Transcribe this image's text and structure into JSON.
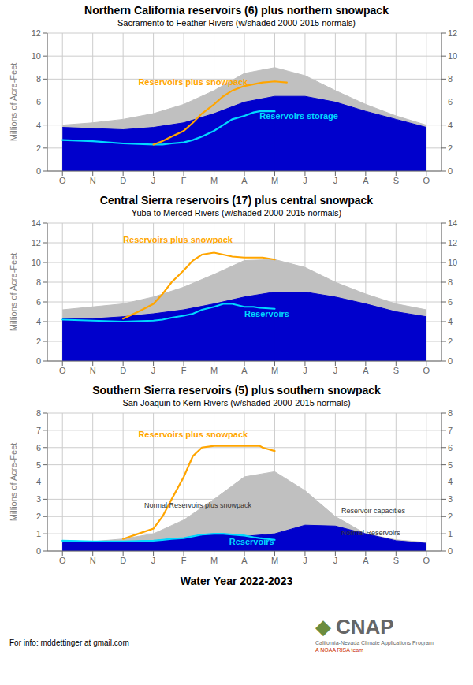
{
  "chart_data": [
    {
      "type": "area",
      "title": "Northern California reservoirs (6) plus northern snowpack",
      "subtitle": "Sacramento to Feather Rivers (w/shaded 2000-2015 normals)",
      "ylabel": "Millions of Acre-Feet",
      "xlim": [
        -0.5,
        12.5
      ],
      "xticks": [
        {
          "value": 0,
          "label": "O"
        },
        {
          "value": 1,
          "label": "N"
        },
        {
          "value": 2,
          "label": "D"
        },
        {
          "value": 3,
          "label": "J"
        },
        {
          "value": 4,
          "label": "F"
        },
        {
          "value": 5,
          "label": "M"
        },
        {
          "value": 6,
          "label": "A"
        },
        {
          "value": 7,
          "label": "M"
        },
        {
          "value": 8,
          "label": "J"
        },
        {
          "value": 9,
          "label": "J"
        },
        {
          "value": 10,
          "label": "A"
        },
        {
          "value": 11,
          "label": "S"
        },
        {
          "value": 12,
          "label": "O"
        }
      ],
      "ylim": [
        0,
        12
      ],
      "yticks": [
        0,
        2,
        4,
        6,
        8,
        10,
        12
      ],
      "y2lim": [
        0,
        12
      ],
      "y2ticks": [
        0,
        2,
        4,
        6,
        8,
        10,
        12
      ],
      "grid": true,
      "series": [
        {
          "type": "area",
          "color": "#c0c0c0",
          "x": [
            0,
            1,
            2,
            3,
            4,
            5,
            6,
            7,
            8,
            9,
            10,
            11,
            12
          ],
          "values": [
            4.0,
            4.2,
            4.5,
            5.0,
            5.8,
            7.0,
            8.5,
            9.0,
            8.3,
            7.0,
            5.8,
            4.8,
            4.0
          ]
        },
        {
          "type": "area",
          "color": "#0000cc",
          "x": [
            0,
            1,
            2,
            3,
            4,
            5,
            6,
            7,
            8,
            9,
            10,
            11,
            12
          ],
          "values": [
            3.8,
            3.7,
            3.6,
            3.8,
            4.2,
            5.0,
            6.0,
            6.5,
            6.5,
            6.0,
            5.2,
            4.5,
            3.8
          ]
        },
        {
          "type": "area",
          "color": "#0000cc",
          "x": [
            0,
            1,
            2,
            3,
            3.3,
            3.6,
            4,
            4.3,
            4.6,
            5,
            5.3,
            5.6,
            6,
            6.3,
            6.5,
            7
          ],
          "values": [
            2.7,
            2.6,
            2.4,
            2.3,
            2.3,
            2.4,
            2.5,
            2.7,
            3.0,
            3.5,
            4.0,
            4.5,
            4.8,
            5.1,
            5.2,
            5.2
          ]
        },
        {
          "type": "line",
          "color": "#00d8ff",
          "x": [
            0,
            1,
            2,
            3,
            3.3,
            3.6,
            4,
            4.3,
            4.6,
            5,
            5.3,
            5.6,
            6,
            6.3,
            6.5,
            7
          ],
          "values": [
            2.7,
            2.6,
            2.4,
            2.3,
            2.3,
            2.4,
            2.5,
            2.7,
            3.0,
            3.5,
            4.0,
            4.5,
            4.8,
            5.1,
            5.2,
            5.2
          ]
        },
        {
          "type": "line",
          "color": "#ffa500",
          "x": [
            3,
            3.3,
            3.6,
            4,
            4.3,
            4.6,
            5,
            5.3,
            5.6,
            6,
            6.2,
            6.4,
            6.6,
            6.8,
            7,
            7.2,
            7.4
          ],
          "values": [
            2.3,
            2.6,
            3.0,
            3.5,
            4.2,
            5.0,
            5.8,
            6.5,
            7.0,
            7.4,
            7.5,
            7.6,
            7.7,
            7.75,
            7.8,
            7.75,
            7.7
          ]
        }
      ],
      "annotations": [
        {
          "text": "Reservoirs plus snowpack",
          "x": 2.5,
          "y": 7.5,
          "color": "#ffa500"
        },
        {
          "text": "Reservoirs storage",
          "x": 6.5,
          "y": 4.5,
          "color": "#00d8ff"
        }
      ]
    },
    {
      "type": "area",
      "title": "Central Sierra reservoirs (17) plus central snowpack",
      "subtitle": "Yuba to Merced Rivers (w/shaded 2000-2015 normals)",
      "ylabel": "Millions of Acre-Feet",
      "xlim": [
        -0.5,
        12.5
      ],
      "xticks": [
        {
          "value": 0,
          "label": "O"
        },
        {
          "value": 1,
          "label": "N"
        },
        {
          "value": 2,
          "label": "D"
        },
        {
          "value": 3,
          "label": "J"
        },
        {
          "value": 4,
          "label": "F"
        },
        {
          "value": 5,
          "label": "M"
        },
        {
          "value": 6,
          "label": "A"
        },
        {
          "value": 7,
          "label": "M"
        },
        {
          "value": 8,
          "label": "J"
        },
        {
          "value": 9,
          "label": "J"
        },
        {
          "value": 10,
          "label": "A"
        },
        {
          "value": 11,
          "label": "S"
        },
        {
          "value": 12,
          "label": "O"
        }
      ],
      "ylim": [
        0,
        14
      ],
      "yticks": [
        0,
        2,
        4,
        6,
        8,
        10,
        12,
        14
      ],
      "y2lim": [
        0,
        14
      ],
      "y2ticks": [
        0,
        2,
        4,
        6,
        8,
        10,
        12,
        14
      ],
      "grid": true,
      "series": [
        {
          "type": "area",
          "color": "#c0c0c0",
          "x": [
            0,
            1,
            2,
            3,
            4,
            5,
            6,
            7,
            8,
            9,
            10,
            11,
            12
          ],
          "values": [
            5.2,
            5.5,
            5.8,
            6.5,
            7.5,
            8.8,
            10.2,
            10.3,
            9.5,
            8.0,
            6.8,
            5.8,
            5.2
          ]
        },
        {
          "type": "area",
          "color": "#0000cc",
          "x": [
            0,
            1,
            2,
            3,
            4,
            5,
            6,
            7,
            8,
            9,
            10,
            11,
            12
          ],
          "values": [
            4.3,
            4.3,
            4.5,
            4.8,
            5.2,
            5.8,
            6.5,
            7.0,
            7.0,
            6.5,
            5.8,
            5.0,
            4.5
          ]
        },
        {
          "type": "area",
          "color": "#0000cc",
          "x": [
            0,
            1,
            2,
            3,
            3.3,
            3.6,
            4,
            4.3,
            4.6,
            5,
            5.3,
            5.6,
            6,
            6.3,
            6.5,
            7
          ],
          "values": [
            4.2,
            4.1,
            4.0,
            4.1,
            4.2,
            4.4,
            4.6,
            4.8,
            5.2,
            5.5,
            5.8,
            5.8,
            5.5,
            5.5,
            5.4,
            5.3
          ]
        },
        {
          "type": "line",
          "color": "#00d8ff",
          "x": [
            0,
            1,
            2,
            3,
            3.3,
            3.6,
            4,
            4.3,
            4.6,
            5,
            5.3,
            5.6,
            6,
            6.3,
            6.5,
            7
          ],
          "values": [
            4.2,
            4.1,
            4.0,
            4.1,
            4.2,
            4.4,
            4.6,
            4.8,
            5.2,
            5.5,
            5.8,
            5.8,
            5.5,
            5.5,
            5.4,
            5.3
          ]
        },
        {
          "type": "line",
          "color": "#ffa500",
          "x": [
            2,
            2.5,
            3,
            3.3,
            3.6,
            4,
            4.3,
            4.6,
            5,
            5.3,
            5.6,
            6,
            6.2,
            6.4,
            6.6,
            6.8,
            7
          ],
          "values": [
            4.3,
            5.0,
            5.8,
            6.8,
            8.0,
            9.2,
            10.2,
            10.8,
            11.0,
            10.8,
            10.6,
            10.5,
            10.5,
            10.5,
            10.5,
            10.4,
            10.3
          ]
        }
      ],
      "annotations": [
        {
          "text": "Reservoirs plus snowpack",
          "x": 2.0,
          "y": 12.0,
          "color": "#ffa500"
        },
        {
          "text": "Reservoirs",
          "x": 6.0,
          "y": 4.5,
          "color": "#00d8ff"
        }
      ]
    },
    {
      "type": "area",
      "title": "Southern Sierra reservoirs (5) plus southern snowpack",
      "subtitle": "San Joaquin to Kern Rivers (w/shaded 2000-2015 normals)",
      "ylabel": "Millions of Acre-Feet",
      "xlabel": "Water Year 2022-2023",
      "xlim": [
        -0.5,
        12.5
      ],
      "xticks": [
        {
          "value": 0,
          "label": "O"
        },
        {
          "value": 1,
          "label": "N"
        },
        {
          "value": 2,
          "label": "D"
        },
        {
          "value": 3,
          "label": "J"
        },
        {
          "value": 4,
          "label": "F"
        },
        {
          "value": 5,
          "label": "M"
        },
        {
          "value": 6,
          "label": "A"
        },
        {
          "value": 7,
          "label": "M"
        },
        {
          "value": 8,
          "label": "J"
        },
        {
          "value": 9,
          "label": "J"
        },
        {
          "value": 10,
          "label": "A"
        },
        {
          "value": 11,
          "label": "S"
        },
        {
          "value": 12,
          "label": "O"
        }
      ],
      "ylim": [
        0,
        8
      ],
      "yticks": [
        0,
        1,
        2,
        3,
        4,
        5,
        6,
        7,
        8
      ],
      "y2lim": [
        0,
        8
      ],
      "y2ticks": [
        0,
        1,
        2,
        3,
        4,
        5,
        6,
        7,
        8
      ],
      "grid": true,
      "series": [
        {
          "type": "area",
          "color": "#c0c0c0",
          "x": [
            0,
            1,
            2,
            3,
            4,
            5,
            6,
            7,
            8,
            9,
            10,
            11,
            12
          ],
          "values": [
            0.5,
            0.55,
            0.7,
            1.0,
            1.8,
            3.0,
            4.3,
            4.6,
            3.5,
            2.0,
            1.0,
            0.65,
            0.5
          ]
        },
        {
          "type": "area",
          "color": "#0000cc",
          "x": [
            0,
            1,
            2,
            3,
            4,
            5,
            6,
            7,
            8,
            9,
            10,
            11,
            12
          ],
          "values": [
            0.45,
            0.45,
            0.48,
            0.5,
            0.55,
            0.65,
            0.85,
            1.0,
            1.5,
            1.45,
            1.0,
            0.6,
            0.45
          ]
        },
        {
          "type": "area",
          "color": "#0000cc",
          "x": [
            0,
            1,
            2,
            3,
            3.3,
            3.6,
            4,
            4.3,
            4.6,
            5,
            5.3,
            5.6,
            6,
            6.3,
            6.5,
            7
          ],
          "values": [
            0.6,
            0.55,
            0.55,
            0.6,
            0.65,
            0.7,
            0.75,
            0.85,
            0.95,
            1.0,
            1.0,
            0.95,
            0.9,
            0.8,
            0.75,
            0.65
          ]
        },
        {
          "type": "line",
          "color": "#00d8ff",
          "x": [
            0,
            1,
            2,
            3,
            3.3,
            3.6,
            4,
            4.3,
            4.6,
            5,
            5.3,
            5.6,
            6,
            6.3,
            6.5,
            7
          ],
          "values": [
            0.6,
            0.55,
            0.55,
            0.6,
            0.65,
            0.7,
            0.75,
            0.85,
            0.95,
            1.0,
            1.0,
            0.95,
            0.9,
            0.8,
            0.75,
            0.65
          ]
        },
        {
          "type": "line",
          "color": "#ffa500",
          "x": [
            2,
            2.5,
            3,
            3.3,
            3.6,
            4,
            4.3,
            4.6,
            5,
            5.3,
            5.6,
            6,
            6.2,
            6.4,
            6.5,
            6.6,
            6.8,
            7
          ],
          "values": [
            0.7,
            1.0,
            1.3,
            2.0,
            3.0,
            4.3,
            5.5,
            6.0,
            6.1,
            6.1,
            6.1,
            6.1,
            6.1,
            6.1,
            6.1,
            6.0,
            5.9,
            5.8
          ]
        }
      ],
      "annotations": [
        {
          "text": "Reservoirs plus snowpack",
          "x": 2.5,
          "y": 6.6,
          "color": "#ffa500"
        },
        {
          "text": "Reservoirs",
          "x": 5.5,
          "y": 0.35,
          "color": "#00d8ff"
        },
        {
          "text": "Normal Reservoirs plus snowpack",
          "x": 2.7,
          "y": 2.5,
          "color": "#333333"
        },
        {
          "text": "Reservoir capacities",
          "x": 9.2,
          "y": 2.2,
          "color": "#333333"
        },
        {
          "text": "Normal Reservoirs",
          "x": 9.2,
          "y": 0.9,
          "color": "#333333"
        },
        {
          "text": "For info: mddettinger at gmail.com"
        },
        {
          "text": "◆",
          "color": "#6b8c3e"
        },
        {
          "text": "CNAP",
          "color": "#666666"
        },
        {
          "text": "California-Nevada Climate Applications Program",
          "color": "#666666"
        },
        {
          "text": "A NOAA RISA team",
          "color": "#cc3300"
        }
      ]
    }
  ]
}
